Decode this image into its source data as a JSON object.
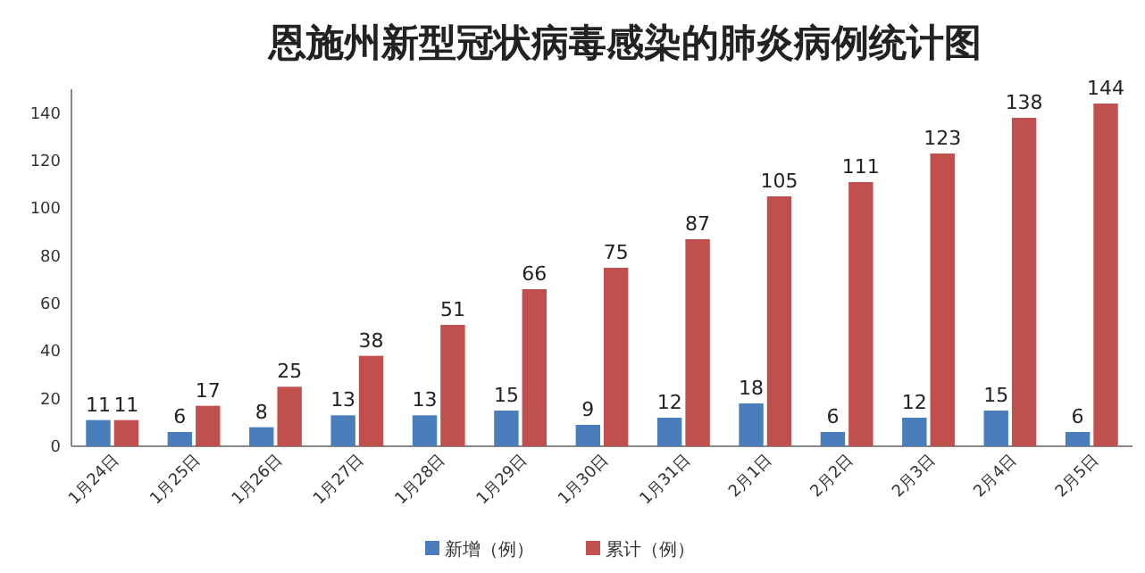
{
  "chart_data": {
    "type": "bar",
    "title": "恩施州新型冠状病毒感染的肺炎病例统计图",
    "categories": [
      "1月24日",
      "1月25日",
      "1月26日",
      "1月27日",
      "1月28日",
      "1月29日",
      "1月30日",
      "1月31日",
      "2月1日",
      "2月2日",
      "2月3日",
      "2月4日",
      "2月5日"
    ],
    "series": [
      {
        "name": "新增（例）",
        "color": "#4a7ebb",
        "values": [
          11,
          6,
          8,
          13,
          13,
          15,
          9,
          12,
          18,
          6,
          12,
          15,
          6
        ]
      },
      {
        "name": "累计（例）",
        "color": "#c0504d",
        "values": [
          11,
          17,
          25,
          38,
          51,
          66,
          75,
          87,
          105,
          111,
          123,
          138,
          144
        ]
      }
    ],
    "ylim": [
      0,
      150
    ],
    "yticks": [
      0,
      20,
      40,
      60,
      80,
      100,
      120,
      140
    ],
    "data_labels": true,
    "legend": "bottom"
  }
}
